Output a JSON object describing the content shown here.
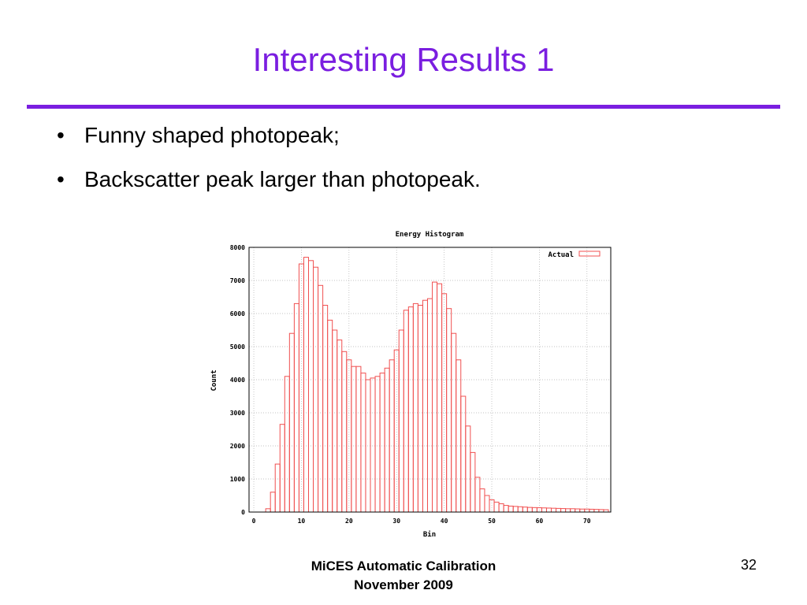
{
  "slide": {
    "title": "Interesting Results 1",
    "bullets": [
      "Funny shaped photopeak;",
      "Backscatter peak larger than photopeak."
    ],
    "footer_line1": "MiCES Automatic Calibration",
    "footer_line2": "November 2009",
    "page_number": "32"
  },
  "colors": {
    "title": "#7a1ee0",
    "bar_stroke": "#f05050",
    "grid": "#b0b0b0"
  },
  "chart_data": {
    "type": "bar",
    "title": "Energy Histogram",
    "xlabel": "Bin",
    "ylabel": "Count",
    "xlim": [
      -1,
      75
    ],
    "ylim": [
      0,
      8000
    ],
    "xticks": [
      0,
      10,
      20,
      30,
      40,
      50,
      60,
      70
    ],
    "yticks": [
      0,
      1000,
      2000,
      3000,
      4000,
      5000,
      6000,
      7000,
      8000
    ],
    "grid": true,
    "legend_position": "top-right",
    "series": [
      {
        "name": "Actual",
        "x": [
          0,
          1,
          2,
          3,
          4,
          5,
          6,
          7,
          8,
          9,
          10,
          11,
          12,
          13,
          14,
          15,
          16,
          17,
          18,
          19,
          20,
          21,
          22,
          23,
          24,
          25,
          26,
          27,
          28,
          29,
          30,
          31,
          32,
          33,
          34,
          35,
          36,
          37,
          38,
          39,
          40,
          41,
          42,
          43,
          44,
          45,
          46,
          47,
          48,
          49,
          50,
          51,
          52,
          53,
          54,
          55,
          56,
          57,
          58,
          59,
          60,
          61,
          62,
          63,
          64,
          65,
          66,
          67,
          68,
          69,
          70,
          71,
          72,
          73,
          74
        ],
        "values": [
          0,
          0,
          0,
          100,
          600,
          1450,
          2650,
          4100,
          5400,
          6300,
          7500,
          7700,
          7600,
          7400,
          6850,
          6250,
          5800,
          5500,
          5200,
          4850,
          4600,
          4400,
          4400,
          4200,
          4000,
          4050,
          4100,
          4200,
          4350,
          4600,
          4900,
          5500,
          6100,
          6200,
          6300,
          6250,
          6400,
          6450,
          6950,
          6900,
          6600,
          6150,
          5400,
          4600,
          3500,
          2600,
          1800,
          1050,
          700,
          500,
          370,
          300,
          250,
          200,
          180,
          170,
          160,
          150,
          140,
          135,
          130,
          125,
          120,
          115,
          110,
          105,
          100,
          100,
          95,
          90,
          90,
          85,
          80,
          75,
          70
        ]
      }
    ]
  }
}
